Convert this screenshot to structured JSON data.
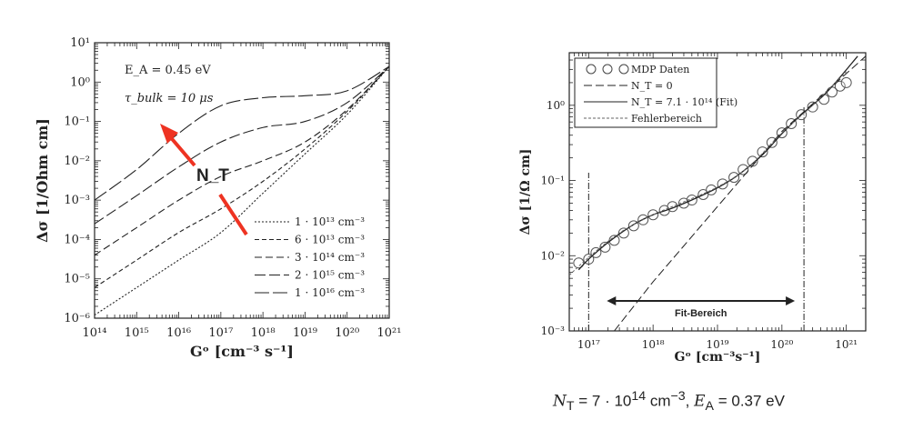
{
  "chart_data": [
    {
      "type": "line",
      "xscale": "log",
      "yscale": "log",
      "xlim": [
        100000000000000.0,
        1e+21
      ],
      "ylim": [
        1e-06,
        10
      ],
      "xlabel": "Gᵒ [cm⁻³ s⁻¹]",
      "ylabel": "Δσ [1/Ohm cm]",
      "x_ticklabels": [
        "10¹⁴",
        "10¹⁵",
        "10¹⁶",
        "10¹⁷",
        "10¹⁸",
        "10¹⁹",
        "10²⁰",
        "10²¹"
      ],
      "y_ticklabels": [
        "10⁻⁶",
        "10⁻⁵",
        "10⁻⁴",
        "10⁻³",
        "10⁻²",
        "10⁻¹",
        "10⁰",
        "10¹"
      ],
      "annotations": [
        "E_A = 0.45 eV",
        "τ_bulk = 10 μs",
        "N_T"
      ],
      "legend_position": "lower-right",
      "series": [
        {
          "name": "1 · 10¹³ cm⁻³",
          "style": "dotted",
          "x": [
            100000000000000.0,
            1000000000000000.0,
            1e+16,
            1e+17,
            1e+18,
            1e+19,
            1e+20,
            1e+21
          ],
          "y": [
            1.2e-06,
            6e-06,
            3e-05,
            0.00015,
            0.0015,
            0.015,
            0.15,
            2.5
          ]
        },
        {
          "name": "6 · 10¹³ cm⁻³",
          "style": "dashed-short",
          "x": [
            100000000000000.0,
            1000000000000000.0,
            1e+16,
            1e+17,
            1e+18,
            1e+19,
            1e+20,
            1e+21
          ],
          "y": [
            6e-06,
            3e-05,
            0.00015,
            0.0006,
            0.003,
            0.02,
            0.18,
            2.5
          ]
        },
        {
          "name": "3 · 10¹⁴ cm⁻³",
          "style": "dashed",
          "x": [
            100000000000000.0,
            1000000000000000.0,
            1e+16,
            1e+17,
            1e+18,
            1e+19,
            1e+20,
            1e+21
          ],
          "y": [
            4e-05,
            0.0002,
            0.001,
            0.004,
            0.01,
            0.03,
            0.2,
            2.5
          ]
        },
        {
          "name": "2 · 10¹⁵ cm⁻³",
          "style": "dashed-long",
          "x": [
            100000000000000.0,
            1000000000000000.0,
            1e+16,
            1e+17,
            1e+18,
            1e+19,
            1e+20,
            1e+21
          ],
          "y": [
            0.00025,
            0.0013,
            0.007,
            0.03,
            0.07,
            0.1,
            0.3,
            2.5
          ]
        },
        {
          "name": "1 · 10¹⁶ cm⁻³",
          "style": "dash-longest",
          "x": [
            100000000000000.0,
            1000000000000000.0,
            1e+16,
            1e+17,
            1e+18,
            1e+19,
            1e+20,
            1e+21
          ],
          "y": [
            0.001,
            0.006,
            0.05,
            0.25,
            0.4,
            0.45,
            0.6,
            2.5
          ]
        }
      ]
    },
    {
      "type": "scatter",
      "xscale": "log",
      "yscale": "log",
      "xlim": [
        5e+16,
        2e+21
      ],
      "ylim": [
        0.001,
        5
      ],
      "xlabel": "Gᵒ [cm⁻³s⁻¹]",
      "ylabel": "Δσ [1/Ω cm]",
      "x_ticklabels": [
        "10¹⁷",
        "10¹⁸",
        "10¹⁹",
        "10²⁰",
        "10²¹"
      ],
      "y_ticklabels": [
        "10⁻³",
        "10⁻²",
        "10⁻¹",
        "10⁰"
      ],
      "legend_position": "top-left",
      "fit_range": {
        "label": "Fit-Bereich",
        "x": [
          1e+17,
          2.2e+20
        ]
      },
      "series": [
        {
          "name": "MDP Daten",
          "style": "circles",
          "x": [
            7e+16,
            1e+17,
            1.3e+17,
            1.8e+17,
            2.5e+17,
            3.5e+17,
            5e+17,
            7e+17,
            1e+18,
            1.5e+18,
            2e+18,
            3e+18,
            4e+18,
            6e+18,
            8e+18,
            1.2e+19,
            1.8e+19,
            2.5e+19,
            3.5e+19,
            5e+19,
            7e+19,
            1e+20,
            1.4e+20,
            2e+20,
            3e+20,
            4.5e+20,
            6e+20,
            8e+20,
            1e+21
          ],
          "y": [
            0.008,
            0.009,
            0.011,
            0.013,
            0.016,
            0.02,
            0.025,
            0.03,
            0.035,
            0.04,
            0.045,
            0.05,
            0.055,
            0.065,
            0.075,
            0.09,
            0.11,
            0.14,
            0.18,
            0.24,
            0.32,
            0.43,
            0.57,
            0.75,
            0.95,
            1.2,
            1.5,
            1.8,
            2.0
          ]
        },
        {
          "name": "N_T = 0",
          "style": "dashed",
          "x": [
            2.5e+17,
            1e+18,
            1e+19,
            1e+20,
            2e+21
          ],
          "y": [
            0.001,
            0.0045,
            0.045,
            0.45,
            4.5
          ]
        },
        {
          "name": "N_T = 7.1 · 10¹⁴ (Fit)",
          "style": "solid",
          "x": [
            7e+16,
            1e+17,
            2e+17,
            5e+17,
            1e+18,
            2e+18,
            5e+18,
            1e+19,
            2e+19,
            5e+19,
            1e+20,
            2e+20,
            5e+20,
            1.5e+21
          ],
          "y": [
            0.0065,
            0.009,
            0.015,
            0.026,
            0.035,
            0.043,
            0.06,
            0.08,
            0.115,
            0.22,
            0.42,
            0.75,
            1.5,
            4.5
          ]
        },
        {
          "name": "Fehlerbereich",
          "style": "dotted",
          "x": [
            5e+16,
            1e+17,
            3e+17,
            1e+18,
            3e+18,
            1e+19,
            3e+19,
            1e+20,
            3e+20,
            1e+21
          ],
          "y": [
            0.0055,
            0.0095,
            0.02,
            0.035,
            0.052,
            0.082,
            0.15,
            0.43,
            1.0,
            2.8
          ]
        }
      ]
    }
  ],
  "caption": {
    "prefix": "N",
    "sub": "T",
    "mid": " = 7 · 10",
    "sup1": "14",
    "unit": " cm",
    "sup2": "−3",
    "sep": ", ",
    "prefix2": "E",
    "sub2": "A",
    "end": " = 0.37 eV"
  },
  "colors": {
    "arrow": "#ee3322",
    "ink": "#222222"
  }
}
